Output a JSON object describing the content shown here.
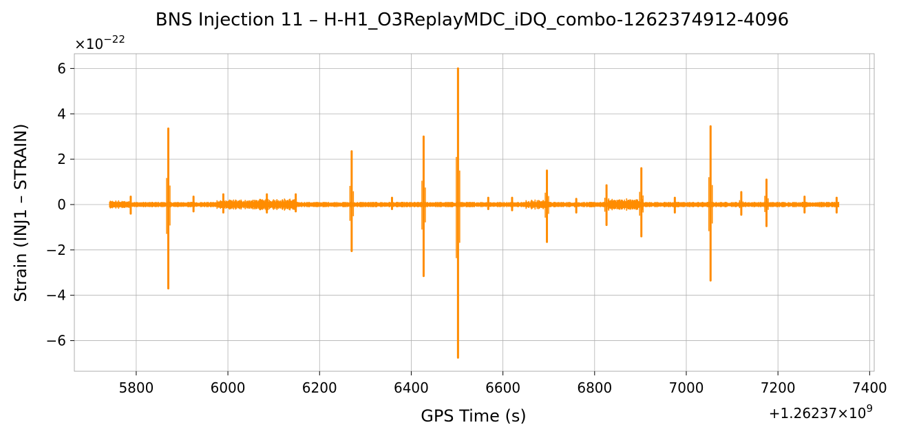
{
  "chart_data": {
    "type": "line",
    "title": "BNS Injection 11 – H-H1_O3ReplayMDC_iDQ_combo-1262374912-4096",
    "xlabel": "GPS Time (s)",
    "ylabel": "Strain (INJ1 – STRAIN)",
    "x_offset_label": "+1.26237×10",
    "x_offset_exponent": "9",
    "y_multiplier_label": "×10",
    "y_multiplier_exponent": "−22",
    "xlim": [
      5665,
      7410
    ],
    "ylim": [
      -7.35,
      6.65
    ],
    "x_ticks": [
      5800,
      6000,
      6200,
      6400,
      6600,
      6800,
      7000,
      7200,
      7400
    ],
    "y_ticks": [
      -6,
      -4,
      -2,
      0,
      2,
      4,
      6
    ],
    "y_tick_labels": [
      "−6",
      "−4",
      "−2",
      "0",
      "2",
      "4",
      "6"
    ],
    "grid": true,
    "series": [
      {
        "color": "#ff8c00",
        "x_range": [
          5742,
          7333
        ],
        "baseline_amplitude": 0.12,
        "noise_bands": [
          {
            "start": 5742,
            "end": 5790,
            "amp": 0.2
          },
          {
            "start": 5975,
            "end": 6090,
            "amp": 0.25
          },
          {
            "start": 6060,
            "end": 6150,
            "amp": 0.3
          },
          {
            "start": 6650,
            "end": 6700,
            "amp": 0.25
          },
          {
            "start": 6830,
            "end": 6905,
            "amp": 0.3
          }
        ],
        "spikes": [
          {
            "x": 5788,
            "max": 0.35,
            "min": -0.4
          },
          {
            "x": 5870,
            "max": 3.35,
            "min": -3.7
          },
          {
            "x": 5925,
            "max": 0.35,
            "min": -0.3
          },
          {
            "x": 5990,
            "max": 0.45,
            "min": -0.35
          },
          {
            "x": 6085,
            "max": 0.45,
            "min": -0.35
          },
          {
            "x": 6148,
            "max": 0.45,
            "min": -0.3
          },
          {
            "x": 6270,
            "max": 2.35,
            "min": -2.05
          },
          {
            "x": 6358,
            "max": 0.3,
            "min": -0.2
          },
          {
            "x": 6427,
            "max": 3.0,
            "min": -3.15
          },
          {
            "x": 6502,
            "max": 6.0,
            "min": -6.75
          },
          {
            "x": 6568,
            "max": 0.3,
            "min": -0.2
          },
          {
            "x": 6620,
            "max": 0.3,
            "min": -0.25
          },
          {
            "x": 6696,
            "max": 1.5,
            "min": -1.65
          },
          {
            "x": 6760,
            "max": 0.25,
            "min": -0.35
          },
          {
            "x": 6826,
            "max": 0.85,
            "min": -0.9
          },
          {
            "x": 6902,
            "max": 1.6,
            "min": -1.4
          },
          {
            "x": 6975,
            "max": 0.3,
            "min": -0.35
          },
          {
            "x": 7053,
            "max": 3.45,
            "min": -3.35
          },
          {
            "x": 7120,
            "max": 0.55,
            "min": -0.45
          },
          {
            "x": 7175,
            "max": 1.1,
            "min": -0.95
          },
          {
            "x": 7258,
            "max": 0.35,
            "min": -0.35
          },
          {
            "x": 7328,
            "max": 0.3,
            "min": -0.35
          }
        ]
      }
    ]
  }
}
